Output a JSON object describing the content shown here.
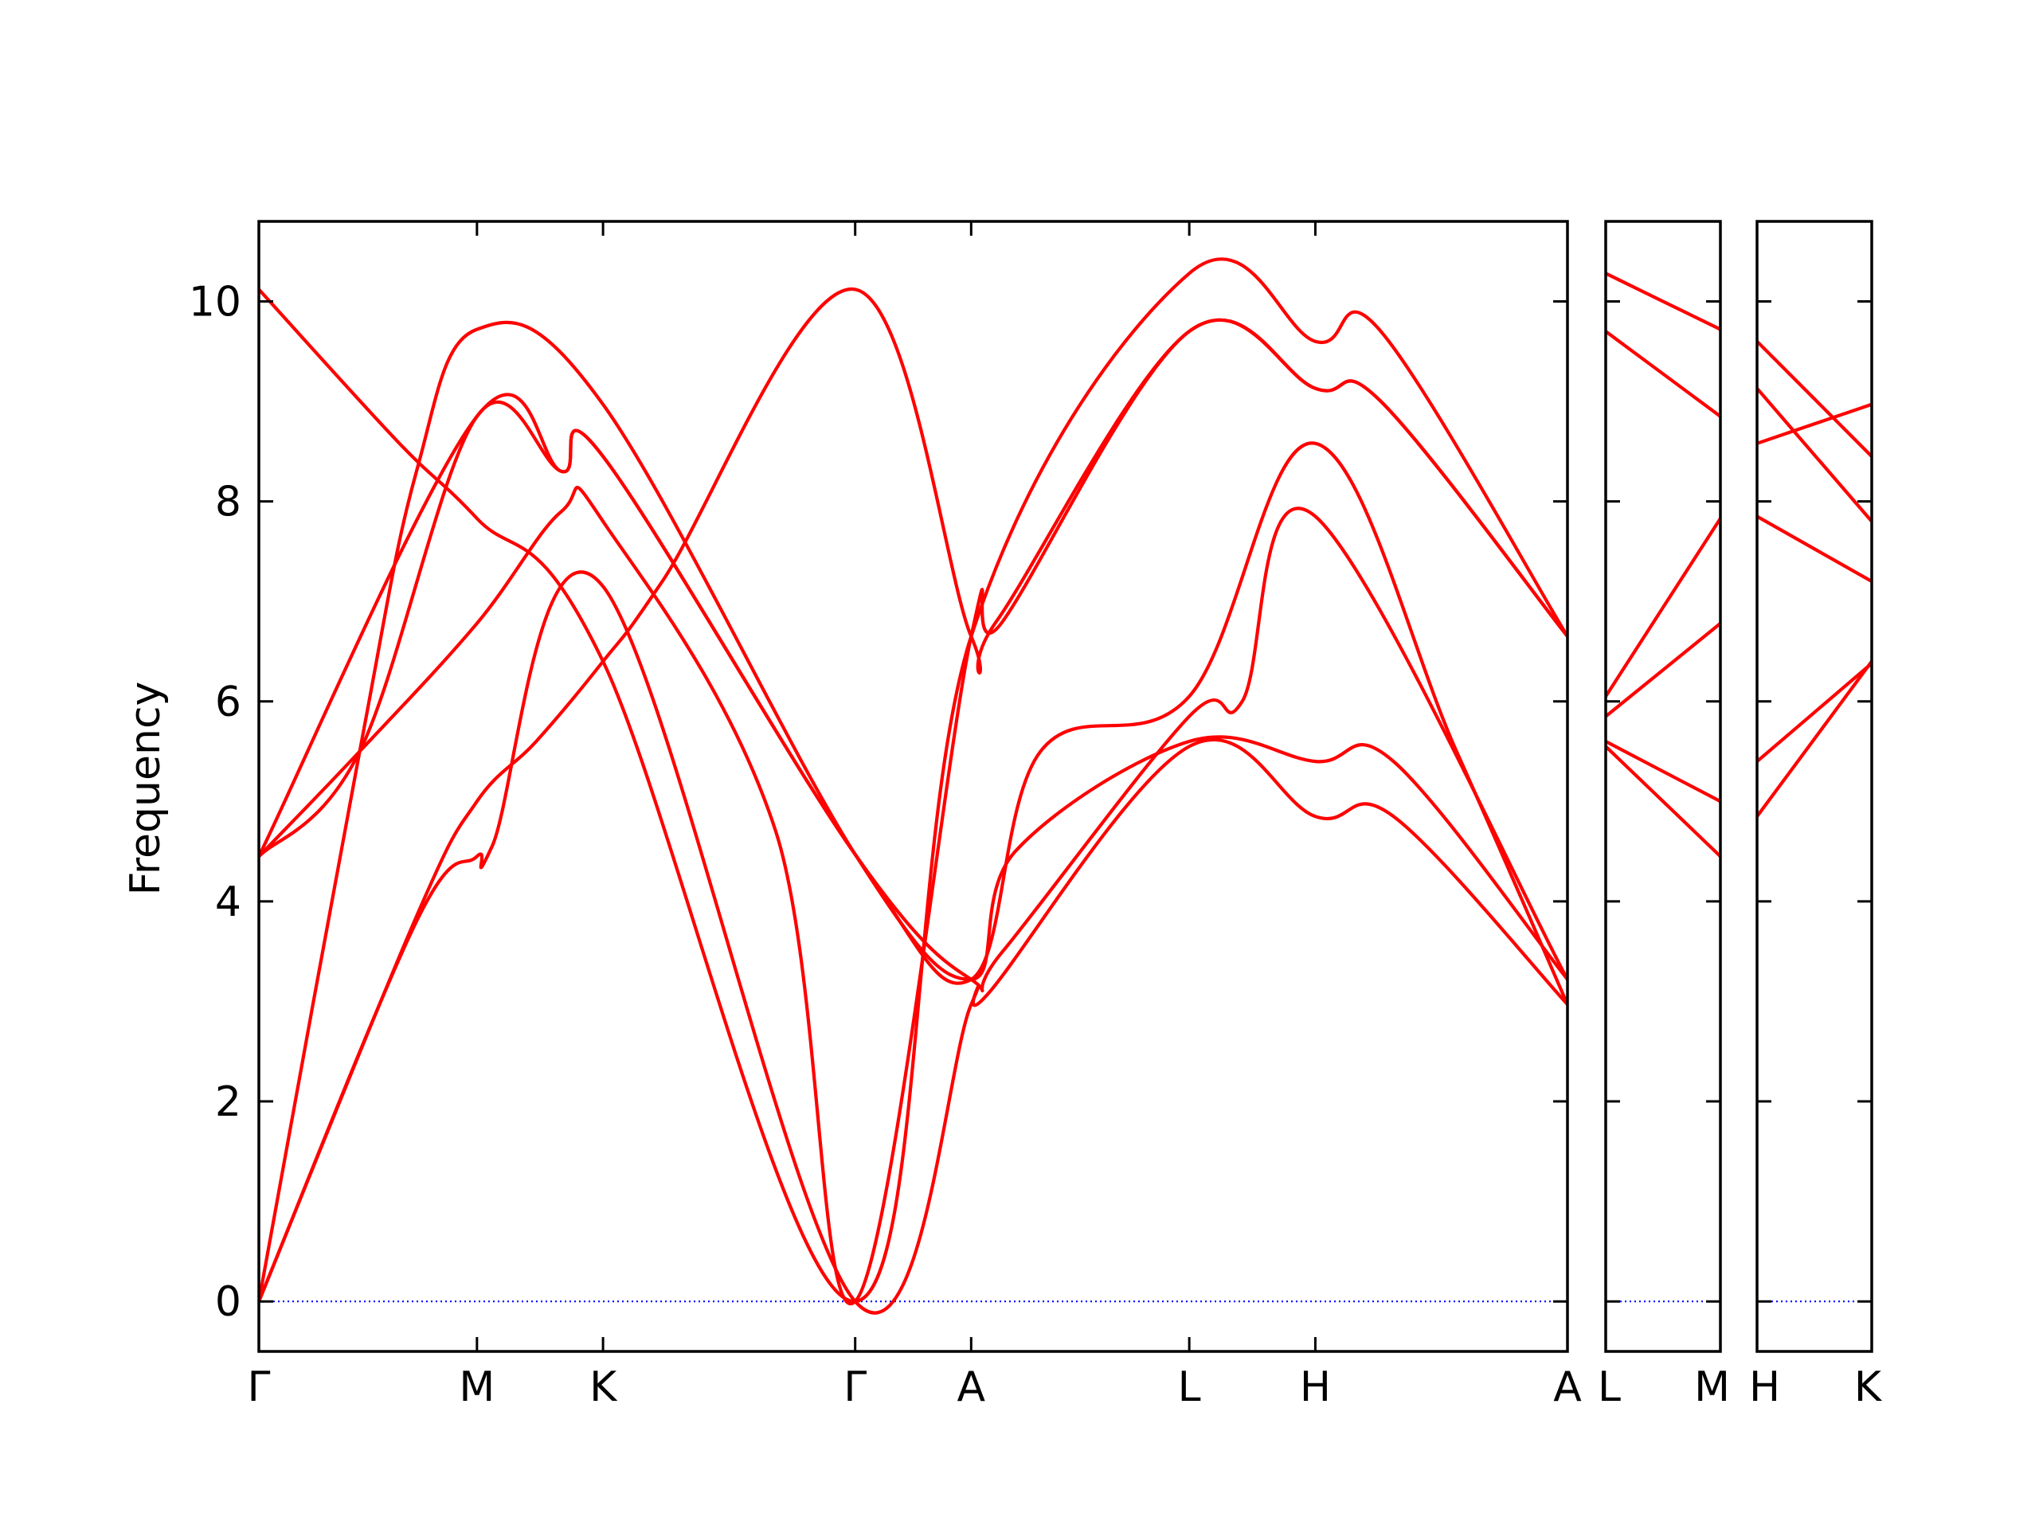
{
  "colors": {
    "band": "#ff0000",
    "zero_line": "#0000ff",
    "axes": "#000000",
    "background": "#ffffff"
  },
  "chart_data": {
    "type": "line",
    "ylabel": "Frequency",
    "xlabel": "",
    "title": "",
    "ylim": [
      -0.5,
      10.8
    ],
    "yticks": [
      0,
      2,
      4,
      6,
      8,
      10
    ],
    "grid": false,
    "legend": "none",
    "zero_line": {
      "y": 0,
      "style": "dotted"
    },
    "panels": [
      {
        "labels": [
          "Γ",
          "M",
          "K",
          "Γ",
          "A",
          "L",
          "H",
          "A"
        ],
        "x": [
          0,
          1.73,
          2.73,
          4.73,
          5.65,
          7.38,
          8.38,
          10.38
        ],
        "series": [
          {
            "values": [
              [
                0,
                0
              ],
              [
                1.25,
                3.8
              ],
              [
                1.73,
                4.45
              ],
              [
                1.85,
                4.55
              ],
              [
                2.73,
                7.15
              ],
              [
                4.73,
                0
              ],
              [
                5.65,
                2.97
              ],
              [
                5.8,
                3.1
              ],
              [
                7.38,
                5.55
              ],
              [
                8.38,
                4.85
              ],
              [
                9.0,
                4.85
              ],
              [
                10.38,
                2.97
              ]
            ]
          },
          {
            "values": [
              [
                0,
                0
              ],
              [
                1.25,
                3.85
              ],
              [
                1.73,
                5.0
              ],
              [
                2.2,
                5.6
              ],
              [
                2.73,
                6.4
              ],
              [
                3.2,
                7.2
              ],
              [
                4.73,
                10.12
              ],
              [
                5.65,
                6.65
              ],
              [
                5.85,
                6.8
              ],
              [
                7.38,
                9.7
              ],
              [
                8.38,
                9.13
              ],
              [
                8.9,
                9.0
              ],
              [
                10.38,
                6.65
              ]
            ]
          },
          {
            "values": [
              [
                0,
                0
              ],
              [
                0.8,
                5.5
              ],
              [
                1.25,
                8.3
              ],
              [
                1.73,
                9.72
              ],
              [
                2.73,
                8.97
              ],
              [
                4.73,
                4.47
              ],
              [
                5.65,
                3.22
              ],
              [
                6.0,
                4.5
              ],
              [
                7.38,
                5.6
              ],
              [
                8.38,
                5.4
              ],
              [
                9.0,
                5.4
              ],
              [
                10.38,
                3.22
              ]
            ]
          },
          {
            "values": [
              [
                0,
                4.45
              ],
              [
                0.8,
                5.5
              ],
              [
                1.73,
                6.78
              ],
              [
                2.4,
                7.9
              ],
              [
                2.73,
                7.8
              ],
              [
                4.1,
                4.7
              ],
              [
                4.73,
                0
              ],
              [
                5.65,
                6.65
              ],
              [
                5.9,
                6.8
              ],
              [
                7.38,
                9.7
              ],
              [
                8.38,
                9.13
              ],
              [
                8.9,
                9.0
              ],
              [
                10.38,
                6.65
              ]
            ]
          },
          {
            "values": [
              [
                0,
                4.45
              ],
              [
                1.73,
                8.85
              ],
              [
                2.4,
                8.3
              ],
              [
                2.73,
                8.45
              ],
              [
                4.73,
                4.47
              ],
              [
                5.65,
                3.22
              ],
              [
                5.9,
                3.5
              ],
              [
                7.38,
                5.85
              ],
              [
                7.8,
                6.0
              ],
              [
                8.38,
                7.85
              ],
              [
                10.38,
                3.22
              ]
            ]
          },
          {
            "values": [
              [
                0,
                10.12
              ],
              [
                1.1,
                8.6
              ],
              [
                1.73,
                7.83
              ],
              [
                2.73,
                6.4
              ],
              [
                4.73,
                0
              ],
              [
                5.65,
                6.65
              ],
              [
                7.38,
                10.28
              ],
              [
                8.38,
                9.6
              ],
              [
                8.9,
                9.7
              ],
              [
                10.38,
                6.65
              ]
            ]
          },
          {
            "values": [
              [
                0,
                4.45
              ],
              [
                0.8,
                5.5
              ],
              [
                1.73,
                8.85
              ],
              [
                2.4,
                8.3
              ],
              [
                2.73,
                8.45
              ],
              [
                4.73,
                4.47
              ],
              [
                5.65,
                3.22
              ],
              [
                6.2,
                5.5
              ],
              [
                7.38,
                6.05
              ],
              [
                8.38,
                8.58
              ],
              [
                9.5,
                5.5
              ],
              [
                10.38,
                2.97
              ]
            ]
          }
        ]
      },
      {
        "labels": [
          "L",
          "M"
        ],
        "x": [
          0,
          1
        ],
        "series": [
          {
            "values": [
              [
                0,
                10.28
              ],
              [
                1,
                9.72
              ]
            ]
          },
          {
            "values": [
              [
                0,
                9.7
              ],
              [
                1,
                8.85
              ]
            ]
          },
          {
            "values": [
              [
                0,
                6.05
              ],
              [
                1,
                7.83
              ]
            ]
          },
          {
            "values": [
              [
                0,
                5.85
              ],
              [
                1,
                6.78
              ]
            ]
          },
          {
            "values": [
              [
                0,
                5.6
              ],
              [
                1,
                5.0
              ]
            ]
          },
          {
            "values": [
              [
                0,
                5.55
              ],
              [
                1,
                4.45
              ]
            ]
          }
        ]
      },
      {
        "labels": [
          "H",
          "K"
        ],
        "x": [
          0,
          1
        ],
        "series": [
          {
            "values": [
              [
                0,
                9.6
              ],
              [
                1,
                8.45
              ]
            ]
          },
          {
            "values": [
              [
                0,
                9.13
              ],
              [
                1,
                7.8
              ]
            ]
          },
          {
            "values": [
              [
                0,
                8.58
              ],
              [
                1,
                8.97
              ]
            ]
          },
          {
            "values": [
              [
                0,
                7.85
              ],
              [
                1,
                7.2
              ]
            ]
          },
          {
            "values": [
              [
                0,
                5.4
              ],
              [
                1,
                6.38
              ]
            ]
          },
          {
            "values": [
              [
                0,
                4.85
              ],
              [
                1,
                6.4
              ]
            ]
          }
        ]
      }
    ]
  }
}
